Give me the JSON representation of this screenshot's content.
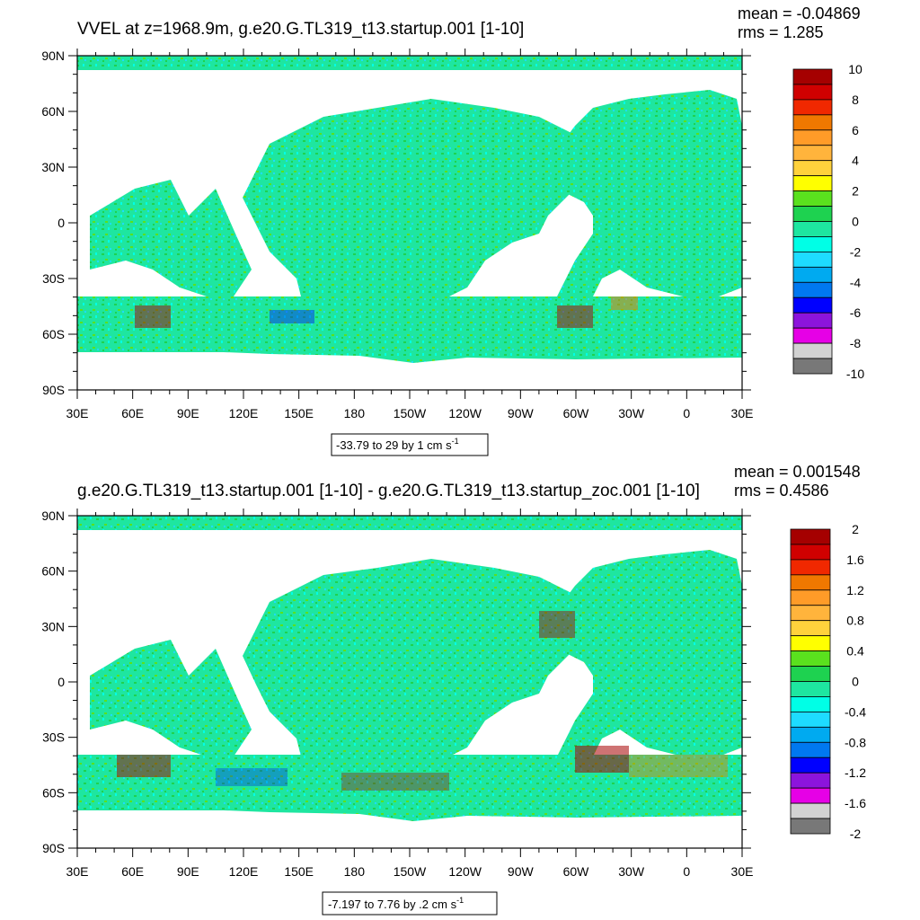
{
  "chart_data": [
    {
      "type": "heatmap",
      "title": "VVEL at z=1968.9m, g.e20.G.TL319_t13.startup.001 [1-10]",
      "mean_label": "mean = -0.04869",
      "rms_label": "rms = 1.285",
      "y_ticks": [
        "90N",
        "60N",
        "30N",
        "0",
        "30S",
        "60S",
        "90S"
      ],
      "x_ticks": [
        "30E",
        "60E",
        "90E",
        "120E",
        "150E",
        "180",
        "150W",
        "120W",
        "90W",
        "60W",
        "30W",
        "0",
        "30E"
      ],
      "info_main": "-33.79 to 29 by 1 cm s",
      "info_sup": "-1",
      "colorbar_labels": [
        "10",
        "8",
        "6",
        "4",
        "2",
        "0",
        "-2",
        "-4",
        "-6",
        "-8",
        "-10"
      ],
      "colorbar_colors": [
        "#a50000",
        "#d00000",
        "#f02800",
        "#f07800",
        "#ff9b28",
        "#ffb43c",
        "#ffd23c",
        "#ffff00",
        "#5ae11e",
        "#1ed250",
        "#1ee6a0",
        "#00ffe6",
        "#1edcff",
        "#00aaf0",
        "#0078f0",
        "#0000ff",
        "#8c14dc",
        "#e600e6",
        "#d2d2d2",
        "#787878"
      ]
    },
    {
      "type": "heatmap",
      "title": "g.e20.G.TL319_t13.startup.001 [1-10] - g.e20.G.TL319_t13.startup_zoc.001 [1-10]",
      "mean_label": "mean = 0.001548",
      "rms_label": "rms = 0.4586",
      "y_ticks": [
        "90N",
        "60N",
        "30N",
        "0",
        "30S",
        "60S",
        "90S"
      ],
      "x_ticks": [
        "30E",
        "60E",
        "90E",
        "120E",
        "150E",
        "180",
        "150W",
        "120W",
        "90W",
        "60W",
        "30W",
        "0",
        "30E"
      ],
      "info_main": "-7.197 to 7.76 by .2 cm s",
      "info_sup": "-1",
      "colorbar_labels": [
        "2",
        "1.6",
        "1.2",
        "0.8",
        "0.4",
        "0",
        "-0.4",
        "-0.8",
        "-1.2",
        "-1.6",
        "-2"
      ],
      "colorbar_colors": [
        "#a50000",
        "#d00000",
        "#f02800",
        "#f07800",
        "#ff9b28",
        "#ffb43c",
        "#ffd23c",
        "#ffff00",
        "#5ae11e",
        "#1ed250",
        "#1ee6a0",
        "#00ffe6",
        "#1edcff",
        "#00aaf0",
        "#0078f0",
        "#0000ff",
        "#8c14dc",
        "#e600e6",
        "#d2d2d2",
        "#787878"
      ]
    }
  ]
}
